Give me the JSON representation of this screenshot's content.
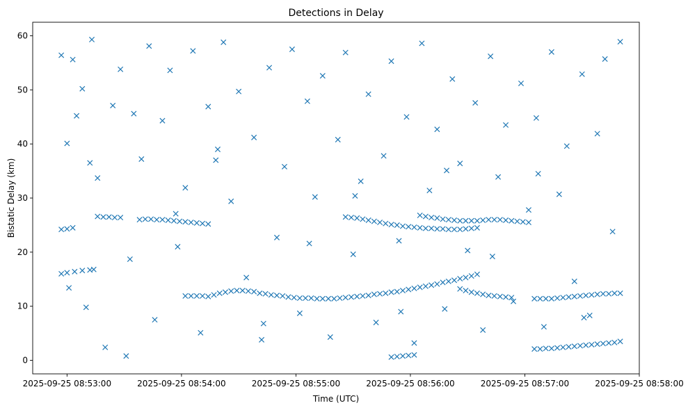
{
  "chart_data": {
    "type": "scatter",
    "title": "Detections in Delay",
    "xlabel": "Time (UTC)",
    "ylabel": "Bistatic Delay (km)",
    "x_type": "time",
    "xlim": [
      "2025-09-25 08:52:42",
      "2025-09-25 08:58:00"
    ],
    "ylim": [
      -2.5,
      62.5
    ],
    "x_ticks": [
      "2025-09-25 08:53:00",
      "2025-09-25 08:54:00",
      "2025-09-25 08:55:00",
      "2025-09-25 08:56:00",
      "2025-09-25 08:57:00",
      "2025-09-25 08:58:00"
    ],
    "y_ticks": [
      0,
      10,
      20,
      30,
      40,
      50,
      60
    ],
    "grid": false,
    "marker": "x",
    "color": "#1f77b4",
    "tracks": [
      {
        "x": [
          "2025-09-25 08:52:57",
          "2025-09-25 08:53:00",
          "2025-09-25 08:53:04",
          "2025-09-25 08:53:08",
          "2025-09-25 08:53:12",
          "2025-09-25 08:53:14"
        ],
        "y": [
          16.0,
          16.2,
          16.4,
          16.6,
          16.7,
          16.8
        ]
      },
      {
        "x": [
          "2025-09-25 08:52:57",
          "2025-09-25 08:53:00",
          "2025-09-25 08:53:03"
        ],
        "y": [
          24.2,
          24.3,
          24.5
        ]
      },
      {
        "x": [
          "2025-09-25 08:53:16",
          "2025-09-25 08:53:19",
          "2025-09-25 08:53:22",
          "2025-09-25 08:53:25",
          "2025-09-25 08:53:28"
        ],
        "y": [
          26.6,
          26.5,
          26.5,
          26.4,
          26.4
        ]
      },
      {
        "x": [
          "2025-09-25 08:53:38",
          "2025-09-25 08:53:41",
          "2025-09-25 08:53:44",
          "2025-09-25 08:53:47",
          "2025-09-25 08:53:50",
          "2025-09-25 08:53:53",
          "2025-09-25 08:53:56",
          "2025-09-25 08:53:59",
          "2025-09-25 08:54:02",
          "2025-09-25 08:54:05",
          "2025-09-25 08:54:08",
          "2025-09-25 08:54:11",
          "2025-09-25 08:54:14"
        ],
        "y": [
          26.0,
          26.1,
          26.1,
          26.0,
          26.0,
          25.9,
          25.8,
          25.7,
          25.6,
          25.5,
          25.4,
          25.3,
          25.2
        ]
      },
      {
        "x": [
          "2025-09-25 08:54:02",
          "2025-09-25 08:54:05",
          "2025-09-25 08:54:08",
          "2025-09-25 08:54:11",
          "2025-09-25 08:54:14",
          "2025-09-25 08:54:17",
          "2025-09-25 08:54:20",
          "2025-09-25 08:54:23",
          "2025-09-25 08:54:26",
          "2025-09-25 08:54:29",
          "2025-09-25 08:54:32",
          "2025-09-25 08:54:35",
          "2025-09-25 08:54:38"
        ],
        "y": [
          11.9,
          11.9,
          11.9,
          11.9,
          11.8,
          12.1,
          12.4,
          12.6,
          12.8,
          12.9,
          12.9,
          12.8,
          12.7
        ]
      },
      {
        "x": [
          "2025-09-25 08:54:41",
          "2025-09-25 08:54:44",
          "2025-09-25 08:54:47",
          "2025-09-25 08:54:50",
          "2025-09-25 08:54:53",
          "2025-09-25 08:54:56",
          "2025-09-25 08:54:59",
          "2025-09-25 08:55:02",
          "2025-09-25 08:55:05",
          "2025-09-25 08:55:08",
          "2025-09-25 08:55:11",
          "2025-09-25 08:55:14",
          "2025-09-25 08:55:17",
          "2025-09-25 08:55:20",
          "2025-09-25 08:55:23",
          "2025-09-25 08:55:26",
          "2025-09-25 08:55:29",
          "2025-09-25 08:55:32",
          "2025-09-25 08:55:35",
          "2025-09-25 08:55:38",
          "2025-09-25 08:55:41",
          "2025-09-25 08:55:44",
          "2025-09-25 08:55:47",
          "2025-09-25 08:55:50",
          "2025-09-25 08:55:53",
          "2025-09-25 08:55:56",
          "2025-09-25 08:55:59",
          "2025-09-25 08:56:02",
          "2025-09-25 08:56:05",
          "2025-09-25 08:56:08",
          "2025-09-25 08:56:11",
          "2025-09-25 08:56:14",
          "2025-09-25 08:56:17",
          "2025-09-25 08:56:20",
          "2025-09-25 08:56:23",
          "2025-09-25 08:56:26",
          "2025-09-25 08:56:29",
          "2025-09-25 08:56:32",
          "2025-09-25 08:56:35"
        ],
        "y": [
          12.4,
          12.3,
          12.1,
          12.0,
          11.9,
          11.7,
          11.6,
          11.5,
          11.5,
          11.5,
          11.4,
          11.4,
          11.4,
          11.4,
          11.5,
          11.6,
          11.7,
          11.8,
          11.9,
          12.0,
          12.2,
          12.3,
          12.4,
          12.6,
          12.7,
          12.9,
          13.1,
          13.3,
          13.5,
          13.7,
          13.9,
          14.1,
          14.4,
          14.6,
          14.8,
          15.1,
          15.3,
          15.6,
          15.9
        ]
      },
      {
        "x": [
          "2025-09-25 08:56:26",
          "2025-09-25 08:56:29",
          "2025-09-25 08:56:32",
          "2025-09-25 08:56:35",
          "2025-09-25 08:56:38",
          "2025-09-25 08:56:41",
          "2025-09-25 08:56:44",
          "2025-09-25 08:56:47",
          "2025-09-25 08:56:50",
          "2025-09-25 08:56:53"
        ],
        "y": [
          13.2,
          12.9,
          12.6,
          12.4,
          12.2,
          12.0,
          11.9,
          11.8,
          11.7,
          11.6
        ]
      },
      {
        "x": [
          "2025-09-25 08:56:38",
          "2025-09-25 08:56:41",
          "2025-09-25 08:56:44",
          "2025-09-25 08:56:47",
          "2025-09-25 08:56:50",
          "2025-09-25 08:56:53",
          "2025-09-25 08:56:56",
          "2025-09-25 08:56:59",
          "2025-09-25 08:57:02"
        ],
        "y": [
          25.9,
          26.0,
          26.0,
          26.0,
          25.9,
          25.8,
          25.7,
          25.6,
          25.5
        ]
      },
      {
        "x": [
          "2025-09-25 08:55:26",
          "2025-09-25 08:55:29",
          "2025-09-25 08:55:32",
          "2025-09-25 08:55:35",
          "2025-09-25 08:55:38",
          "2025-09-25 08:55:41",
          "2025-09-25 08:55:44",
          "2025-09-25 08:55:47",
          "2025-09-25 08:55:50",
          "2025-09-25 08:55:53",
          "2025-09-25 08:55:56",
          "2025-09-25 08:55:59",
          "2025-09-25 08:56:02",
          "2025-09-25 08:56:05",
          "2025-09-25 08:56:08",
          "2025-09-25 08:56:11",
          "2025-09-25 08:56:14",
          "2025-09-25 08:56:17",
          "2025-09-25 08:56:20",
          "2025-09-25 08:56:23",
          "2025-09-25 08:56:26",
          "2025-09-25 08:56:29",
          "2025-09-25 08:56:32",
          "2025-09-25 08:56:35"
        ],
        "y": [
          26.5,
          26.4,
          26.3,
          26.1,
          25.9,
          25.7,
          25.5,
          25.3,
          25.1,
          25.0,
          24.8,
          24.7,
          24.6,
          24.5,
          24.4,
          24.4,
          24.3,
          24.3,
          24.2,
          24.2,
          24.2,
          24.3,
          24.4,
          24.5
        ]
      },
      {
        "x": [
          "2025-09-25 08:56:05",
          "2025-09-25 08:56:08",
          "2025-09-25 08:56:11",
          "2025-09-25 08:56:14",
          "2025-09-25 08:56:17",
          "2025-09-25 08:56:20",
          "2025-09-25 08:56:23",
          "2025-09-25 08:56:26",
          "2025-09-25 08:56:29",
          "2025-09-25 08:56:32",
          "2025-09-25 08:56:35"
        ],
        "y": [
          26.8,
          26.6,
          26.4,
          26.3,
          26.1,
          26.0,
          25.9,
          25.8,
          25.8,
          25.8,
          25.8
        ]
      },
      {
        "x": [
          "2025-09-25 08:55:50",
          "2025-09-25 08:55:53",
          "2025-09-25 08:55:56",
          "2025-09-25 08:55:59",
          "2025-09-25 08:56:02"
        ],
        "y": [
          0.6,
          0.7,
          0.8,
          0.9,
          1.0
        ]
      },
      {
        "x": [
          "2025-09-25 08:57:05",
          "2025-09-25 08:57:08",
          "2025-09-25 08:57:11",
          "2025-09-25 08:57:14",
          "2025-09-25 08:57:17",
          "2025-09-25 08:57:20",
          "2025-09-25 08:57:23",
          "2025-09-25 08:57:26",
          "2025-09-25 08:57:29",
          "2025-09-25 08:57:32",
          "2025-09-25 08:57:35",
          "2025-09-25 08:57:38",
          "2025-09-25 08:57:41",
          "2025-09-25 08:57:44",
          "2025-09-25 08:57:47",
          "2025-09-25 08:57:50"
        ],
        "y": [
          11.4,
          11.4,
          11.4,
          11.4,
          11.5,
          11.6,
          11.7,
          11.8,
          11.9,
          12.0,
          12.1,
          12.2,
          12.3,
          12.3,
          12.4,
          12.4
        ]
      },
      {
        "x": [
          "2025-09-25 08:57:05",
          "2025-09-25 08:57:08",
          "2025-09-25 08:57:11",
          "2025-09-25 08:57:14",
          "2025-09-25 08:57:17",
          "2025-09-25 08:57:20",
          "2025-09-25 08:57:23",
          "2025-09-25 08:57:26",
          "2025-09-25 08:57:29",
          "2025-09-25 08:57:32",
          "2025-09-25 08:57:35",
          "2025-09-25 08:57:38",
          "2025-09-25 08:57:41",
          "2025-09-25 08:57:44",
          "2025-09-25 08:57:47",
          "2025-09-25 08:57:50"
        ],
        "y": [
          2.1,
          2.1,
          2.2,
          2.2,
          2.3,
          2.4,
          2.5,
          2.6,
          2.7,
          2.8,
          2.9,
          3.0,
          3.1,
          3.2,
          3.3,
          3.5
        ]
      }
    ],
    "scattered_points": {
      "x": [
        "2025-09-25 08:52:57",
        "2025-09-25 08:53:00",
        "2025-09-25 08:53:03",
        "2025-09-25 08:53:01",
        "2025-09-25 08:53:08",
        "2025-09-25 08:53:10",
        "2025-09-25 08:53:13",
        "2025-09-25 08:53:16",
        "2025-09-25 08:53:20",
        "2025-09-25 08:53:24",
        "2025-09-25 08:53:28",
        "2025-09-25 08:53:31",
        "2025-09-25 08:53:35",
        "2025-09-25 08:53:39",
        "2025-09-25 08:53:43",
        "2025-09-25 08:53:46",
        "2025-09-25 08:53:50",
        "2025-09-25 08:53:54",
        "2025-09-25 08:53:58",
        "2025-09-25 08:54:02",
        "2025-09-25 08:54:06",
        "2025-09-25 08:54:10",
        "2025-09-25 08:54:14",
        "2025-09-25 08:54:18",
        "2025-09-25 08:54:22",
        "2025-09-25 08:54:26",
        "2025-09-25 08:54:30",
        "2025-09-25 08:54:34",
        "2025-09-25 08:54:38",
        "2025-09-25 08:54:42",
        "2025-09-25 08:54:46",
        "2025-09-25 08:54:50",
        "2025-09-25 08:54:54",
        "2025-09-25 08:54:58",
        "2025-09-25 08:55:02",
        "2025-09-25 08:55:06",
        "2025-09-25 08:55:10",
        "2025-09-25 08:55:14",
        "2025-09-25 08:55:18",
        "2025-09-25 08:55:22",
        "2025-09-25 08:55:26",
        "2025-09-25 08:55:30",
        "2025-09-25 08:55:34",
        "2025-09-25 08:55:38",
        "2025-09-25 08:55:42",
        "2025-09-25 08:55:46",
        "2025-09-25 08:55:50",
        "2025-09-25 08:55:54",
        "2025-09-25 08:55:58",
        "2025-09-25 08:56:02",
        "2025-09-25 08:56:06",
        "2025-09-25 08:56:10",
        "2025-09-25 08:56:14",
        "2025-09-25 08:56:18",
        "2025-09-25 08:56:22",
        "2025-09-25 08:56:26",
        "2025-09-25 08:56:30",
        "2025-09-25 08:56:34",
        "2025-09-25 08:56:38",
        "2025-09-25 08:56:42",
        "2025-09-25 08:56:46",
        "2025-09-25 08:56:50",
        "2025-09-25 08:56:54",
        "2025-09-25 08:56:58",
        "2025-09-25 08:57:02",
        "2025-09-25 08:57:06",
        "2025-09-25 08:57:10",
        "2025-09-25 08:57:14",
        "2025-09-25 08:57:18",
        "2025-09-25 08:57:22",
        "2025-09-25 08:57:26",
        "2025-09-25 08:57:30",
        "2025-09-25 08:57:34",
        "2025-09-25 08:57:38",
        "2025-09-25 08:57:42",
        "2025-09-25 08:57:46",
        "2025-09-25 08:57:50",
        "2025-09-25 08:53:05",
        "2025-09-25 08:53:12",
        "2025-09-25 08:53:33",
        "2025-09-25 08:53:57",
        "2025-09-25 08:54:19",
        "2025-09-25 08:54:43",
        "2025-09-25 08:55:07",
        "2025-09-25 08:55:31",
        "2025-09-25 08:55:55",
        "2025-09-25 08:56:19",
        "2025-09-25 08:56:43",
        "2025-09-25 08:57:07",
        "2025-09-25 08:57:31"
      ],
      "y": [
        56.4,
        40.1,
        55.6,
        13.4,
        50.2,
        9.8,
        59.3,
        33.7,
        2.4,
        47.1,
        53.8,
        0.8,
        45.6,
        37.2,
        58.1,
        7.5,
        44.3,
        53.6,
        21.0,
        31.9,
        57.2,
        5.1,
        46.9,
        37.0,
        58.8,
        29.4,
        49.7,
        15.3,
        41.2,
        3.8,
        54.1,
        22.7,
        35.8,
        57.5,
        8.7,
        47.9,
        30.2,
        52.6,
        4.3,
        40.8,
        56.9,
        19.6,
        33.1,
        49.2,
        7.0,
        37.8,
        55.3,
        22.1,
        45.0,
        3.2,
        58.6,
        31.4,
        42.7,
        9.5,
        52.0,
        36.4,
        20.3,
        47.6,
        5.6,
        56.2,
        33.9,
        43.5,
        10.9,
        51.2,
        27.8,
        44.8,
        6.2,
        57.0,
        30.7,
        39.6,
        14.6,
        52.9,
        8.3,
        41.9,
        55.7,
        23.8,
        58.9,
        45.2,
        36.5,
        18.7,
        27.1,
        39.0,
        6.8,
        21.6,
        30.4,
        9.0,
        35.1,
        19.2,
        34.5,
        7.9
      ]
    }
  }
}
